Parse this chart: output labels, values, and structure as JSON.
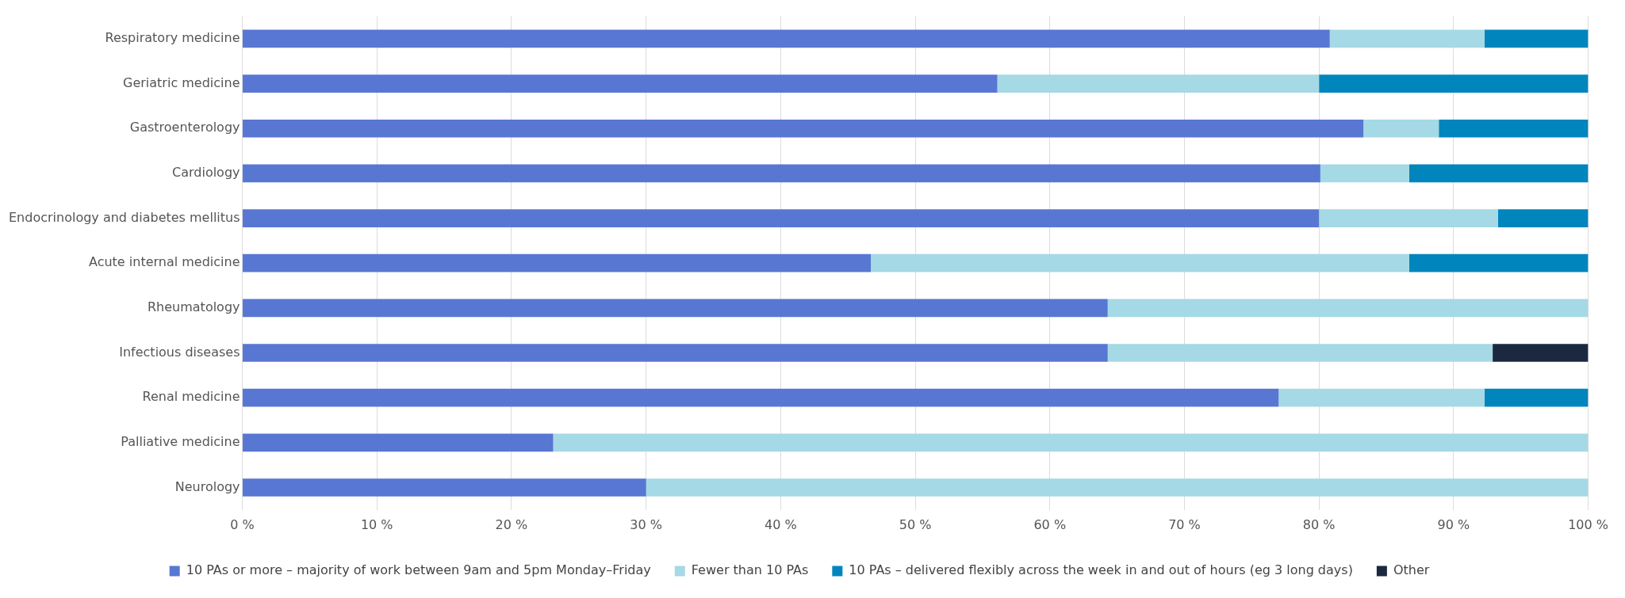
{
  "chart_data": {
    "type": "bar",
    "orientation": "horizontal",
    "stacked": true,
    "categories": [
      "Respiratory medicine",
      "Geriatric medicine",
      "Gastroenterology",
      "Cardiology",
      "Endocrinology and diabetes mellitus",
      "Acute internal medicine",
      "Rheumatology",
      "Infectious diseases",
      "Renal medicine",
      "Palliative medicine",
      "Neurology"
    ],
    "series": [
      {
        "name": "10 PAs or more – majority of work between 9am and 5pm Monday–Friday",
        "color": "#5877d3",
        "values": [
          80.8,
          56.1,
          83.3,
          80.1,
          80.0,
          46.7,
          64.3,
          64.3,
          77.0,
          23.1,
          30.0
        ]
      },
      {
        "name": "Fewer than 10 PAs",
        "color": "#a5d9e5",
        "values": [
          11.5,
          23.9,
          5.6,
          6.6,
          13.3,
          40.0,
          35.7,
          28.6,
          15.3,
          76.9,
          70.0
        ]
      },
      {
        "name": "10 PAs – delivered flexibly across the week in and out of hours (eg 3 long days)",
        "color": "#0085bd",
        "values": [
          7.7,
          20.0,
          11.1,
          13.3,
          6.7,
          13.3,
          null,
          null,
          7.7,
          null,
          null
        ]
      },
      {
        "name": "Other",
        "color": "#1b2840",
        "values": [
          null,
          null,
          null,
          null,
          null,
          null,
          null,
          7.1,
          null,
          null,
          null
        ]
      }
    ],
    "xlim": [
      0,
      100
    ],
    "xticks": [
      {
        "value": 0,
        "label": "0 %"
      },
      {
        "value": 10,
        "label": "10 %"
      },
      {
        "value": 20,
        "label": "20 %"
      },
      {
        "value": 30,
        "label": "30 %"
      },
      {
        "value": 40,
        "label": "40 %"
      },
      {
        "value": 50,
        "label": "50 %"
      },
      {
        "value": 60,
        "label": "60 %"
      },
      {
        "value": 70,
        "label": "70 %"
      },
      {
        "value": 80,
        "label": "80 %"
      },
      {
        "value": 90,
        "label": "90 %"
      },
      {
        "value": 100,
        "label": "100 %"
      }
    ],
    "grid": "x",
    "legend": "bottom"
  }
}
